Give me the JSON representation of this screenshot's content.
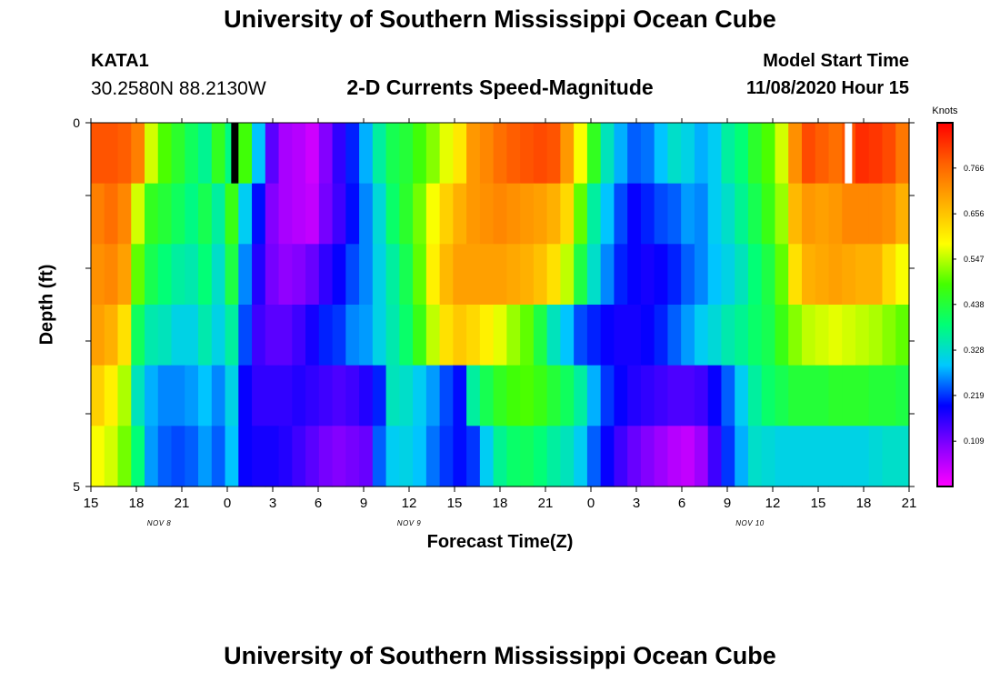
{
  "header": {
    "title": "University of Southern Mississippi Ocean Cube",
    "station": "KATA1",
    "coordinates": "30.2580N 88.2130W",
    "model_start_label": "Model Start Time",
    "model_start_value": "11/08/2020 Hour 15"
  },
  "footer": {
    "title": "University of Southern Mississippi Ocean Cube"
  },
  "chart_data": {
    "type": "heatmap",
    "title": "2-D Currents Speed-Magnitude",
    "xlabel": "Forecast Time(Z)",
    "ylabel": "Depth (ft)",
    "x_range_hours": [
      0,
      54
    ],
    "x_tick_labels": [
      "15",
      "18",
      "21",
      "0",
      "3",
      "6",
      "9",
      "12",
      "15",
      "18",
      "21",
      "0",
      "3",
      "6",
      "9",
      "12",
      "15",
      "18",
      "21"
    ],
    "date_labels": [
      {
        "label": "NOV 8",
        "hour": 4.5
      },
      {
        "label": "NOV 9",
        "hour": 21
      },
      {
        "label": "NOV 10",
        "hour": 43.5
      }
    ],
    "y_range": [
      0,
      5
    ],
    "y_tick_labels": [
      "0",
      "5"
    ],
    "y_reversed": true,
    "colorbar": {
      "title": "Knots",
      "tick_labels": [
        "0.766",
        "0.656",
        "0.547",
        "0.438",
        "0.328",
        "0.219",
        "0.109"
      ],
      "tick_values": [
        0.766,
        0.656,
        0.547,
        0.438,
        0.328,
        0.219,
        0.109
      ],
      "min": 0,
      "max": 0.875,
      "colors": [
        "#ff00ff",
        "#8800ff",
        "#0000ff",
        "#00c8ff",
        "#00ff77",
        "#44ff00",
        "#ffff00",
        "#ffb000",
        "#ff6000",
        "#ff0000"
      ]
    },
    "depth_layers": 6,
    "rows": [
      [
        0.79,
        0.79,
        0.78,
        0.74,
        0.56,
        0.49,
        0.45,
        0.41,
        0.37,
        0.46,
        0.38,
        0.48,
        0.29,
        0.13,
        0.07,
        0.06,
        0.04,
        0.1,
        0.16,
        0.21,
        0.28,
        0.36,
        0.42,
        0.44,
        0.48,
        0.52,
        0.57,
        0.61,
        0.71,
        0.73,
        0.76,
        0.78,
        0.79,
        0.8,
        0.79,
        0.71,
        0.58,
        0.46,
        0.34,
        0.28,
        0.24,
        0.25,
        0.29,
        0.33,
        0.31,
        0.28,
        0.3,
        0.36,
        0.39,
        0.45,
        0.49,
        0.56,
        0.72,
        0.8,
        0.78,
        0.76,
        0.79,
        0.83,
        0.82,
        0.8,
        0.75
      ],
      [
        0.74,
        0.76,
        0.73,
        0.56,
        0.46,
        0.44,
        0.41,
        0.38,
        0.42,
        0.36,
        0.47,
        0.3,
        0.2,
        0.1,
        0.07,
        0.06,
        0.05,
        0.11,
        0.15,
        0.2,
        0.26,
        0.32,
        0.4,
        0.45,
        0.51,
        0.58,
        0.64,
        0.68,
        0.71,
        0.72,
        0.73,
        0.72,
        0.71,
        0.7,
        0.68,
        0.63,
        0.5,
        0.36,
        0.29,
        0.23,
        0.19,
        0.21,
        0.23,
        0.24,
        0.27,
        0.26,
        0.3,
        0.33,
        0.37,
        0.42,
        0.47,
        0.53,
        0.67,
        0.71,
        0.7,
        0.71,
        0.73,
        0.73,
        0.73,
        0.72,
        0.68
      ],
      [
        0.72,
        0.73,
        0.7,
        0.5,
        0.42,
        0.39,
        0.36,
        0.35,
        0.39,
        0.33,
        0.43,
        0.26,
        0.17,
        0.11,
        0.09,
        0.1,
        0.12,
        0.16,
        0.19,
        0.23,
        0.26,
        0.31,
        0.36,
        0.42,
        0.5,
        0.6,
        0.67,
        0.7,
        0.7,
        0.7,
        0.7,
        0.69,
        0.68,
        0.66,
        0.62,
        0.55,
        0.43,
        0.33,
        0.26,
        0.21,
        0.19,
        0.18,
        0.19,
        0.21,
        0.24,
        0.26,
        0.29,
        0.31,
        0.34,
        0.39,
        0.43,
        0.5,
        0.62,
        0.68,
        0.69,
        0.7,
        0.69,
        0.68,
        0.68,
        0.63,
        0.58
      ],
      [
        0.7,
        0.68,
        0.62,
        0.41,
        0.35,
        0.34,
        0.31,
        0.31,
        0.35,
        0.31,
        0.36,
        0.23,
        0.15,
        0.13,
        0.13,
        0.15,
        0.18,
        0.21,
        0.22,
        0.26,
        0.27,
        0.31,
        0.35,
        0.4,
        0.47,
        0.55,
        0.62,
        0.65,
        0.63,
        0.6,
        0.57,
        0.53,
        0.5,
        0.43,
        0.34,
        0.29,
        0.23,
        0.21,
        0.19,
        0.18,
        0.18,
        0.19,
        0.21,
        0.24,
        0.27,
        0.3,
        0.32,
        0.35,
        0.37,
        0.4,
        0.42,
        0.47,
        0.52,
        0.55,
        0.56,
        0.57,
        0.56,
        0.55,
        0.54,
        0.52,
        0.5
      ],
      [
        0.64,
        0.6,
        0.54,
        0.34,
        0.28,
        0.26,
        0.26,
        0.27,
        0.29,
        0.26,
        0.31,
        0.19,
        0.16,
        0.16,
        0.16,
        0.17,
        0.16,
        0.15,
        0.14,
        0.15,
        0.17,
        0.21,
        0.34,
        0.33,
        0.3,
        0.27,
        0.23,
        0.2,
        0.36,
        0.42,
        0.46,
        0.48,
        0.49,
        0.47,
        0.44,
        0.41,
        0.36,
        0.28,
        0.22,
        0.19,
        0.17,
        0.16,
        0.15,
        0.14,
        0.14,
        0.15,
        0.19,
        0.24,
        0.3,
        0.36,
        0.4,
        0.42,
        0.44,
        0.44,
        0.44,
        0.45,
        0.45,
        0.45,
        0.44,
        0.44,
        0.43
      ],
      [
        0.58,
        0.56,
        0.51,
        0.39,
        0.27,
        0.24,
        0.23,
        0.24,
        0.27,
        0.24,
        0.29,
        0.19,
        0.18,
        0.18,
        0.17,
        0.15,
        0.13,
        0.11,
        0.1,
        0.11,
        0.12,
        0.24,
        0.3,
        0.31,
        0.29,
        0.25,
        0.22,
        0.2,
        0.22,
        0.3,
        0.37,
        0.4,
        0.41,
        0.39,
        0.36,
        0.34,
        0.3,
        0.24,
        0.19,
        0.15,
        0.12,
        0.1,
        0.08,
        0.06,
        0.05,
        0.08,
        0.15,
        0.22,
        0.28,
        0.33,
        0.32,
        0.31,
        0.31,
        0.31,
        0.31,
        0.31,
        0.31,
        0.31,
        0.32,
        0.33,
        0.33
      ]
    ],
    "markers": [
      {
        "hour": 9.5,
        "layer": 0,
        "color": "#000000"
      },
      {
        "hour": 50,
        "layer": 0,
        "color": "#ffffff"
      }
    ]
  }
}
